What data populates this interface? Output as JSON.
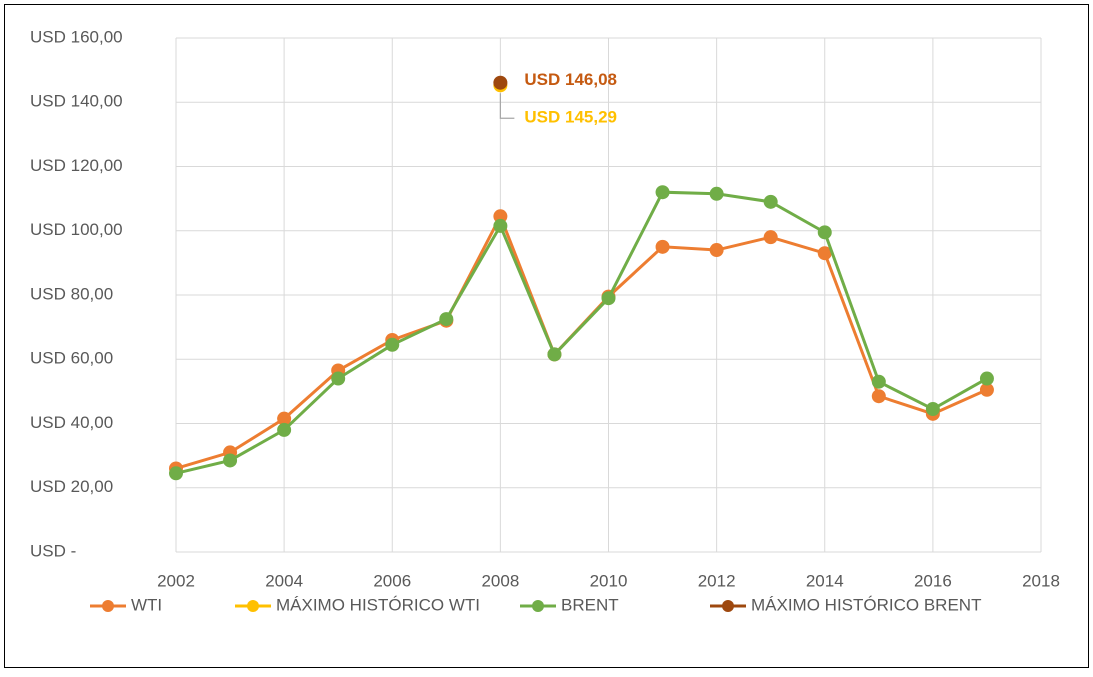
{
  "chart_data": {
    "type": "line",
    "ylim": [
      0,
      160
    ],
    "yticks": [
      {
        "value": 0,
        "label": "USD -"
      },
      {
        "value": 20,
        "label": "USD 20,00"
      },
      {
        "value": 40,
        "label": "USD 40,00"
      },
      {
        "value": 60,
        "label": "USD 60,00"
      },
      {
        "value": 80,
        "label": "USD 80,00"
      },
      {
        "value": 100,
        "label": "USD 100,00"
      },
      {
        "value": 120,
        "label": "USD 120,00"
      },
      {
        "value": 140,
        "label": "USD 140,00"
      },
      {
        "value": 160,
        "label": "USD 160,00"
      }
    ],
    "xlim": [
      2002,
      2018
    ],
    "xticks": [
      2002,
      2004,
      2006,
      2008,
      2010,
      2012,
      2014,
      2016,
      2018
    ],
    "grid": true,
    "legend": "bottom",
    "series": [
      {
        "name": "WTI",
        "color": "#ED7D31",
        "x": [
          2002,
          2003,
          2004,
          2005,
          2006,
          2007,
          2008,
          2009,
          2010,
          2011,
          2012,
          2013,
          2014,
          2015,
          2016,
          2017
        ],
        "values": [
          26,
          31,
          41.5,
          56.5,
          66,
          72,
          104.5,
          61.5,
          79.5,
          95,
          94,
          98,
          93,
          48.5,
          43,
          50.5
        ]
      },
      {
        "name": "MÁXIMO HISTÓRICO WTI",
        "color": "#FFC000",
        "x": [
          2008
        ],
        "values": [
          145.29
        ],
        "value_labels": [
          "USD 145,29"
        ]
      },
      {
        "name": "BRENT",
        "color": "#70AD47",
        "x": [
          2002,
          2003,
          2004,
          2005,
          2006,
          2007,
          2008,
          2009,
          2010,
          2011,
          2012,
          2013,
          2014,
          2015,
          2016,
          2017
        ],
        "values": [
          24.5,
          28.5,
          38,
          54,
          64.5,
          72.5,
          101.5,
          61.5,
          79,
          112,
          111.5,
          109,
          99.5,
          53,
          44.5,
          54
        ]
      },
      {
        "name": "MÁXIMO HISTÓRICO BRENT",
        "color": "#9E480E",
        "x": [
          2008
        ],
        "values": [
          146.08
        ],
        "value_labels": [
          "USD 146,08"
        ]
      }
    ]
  }
}
